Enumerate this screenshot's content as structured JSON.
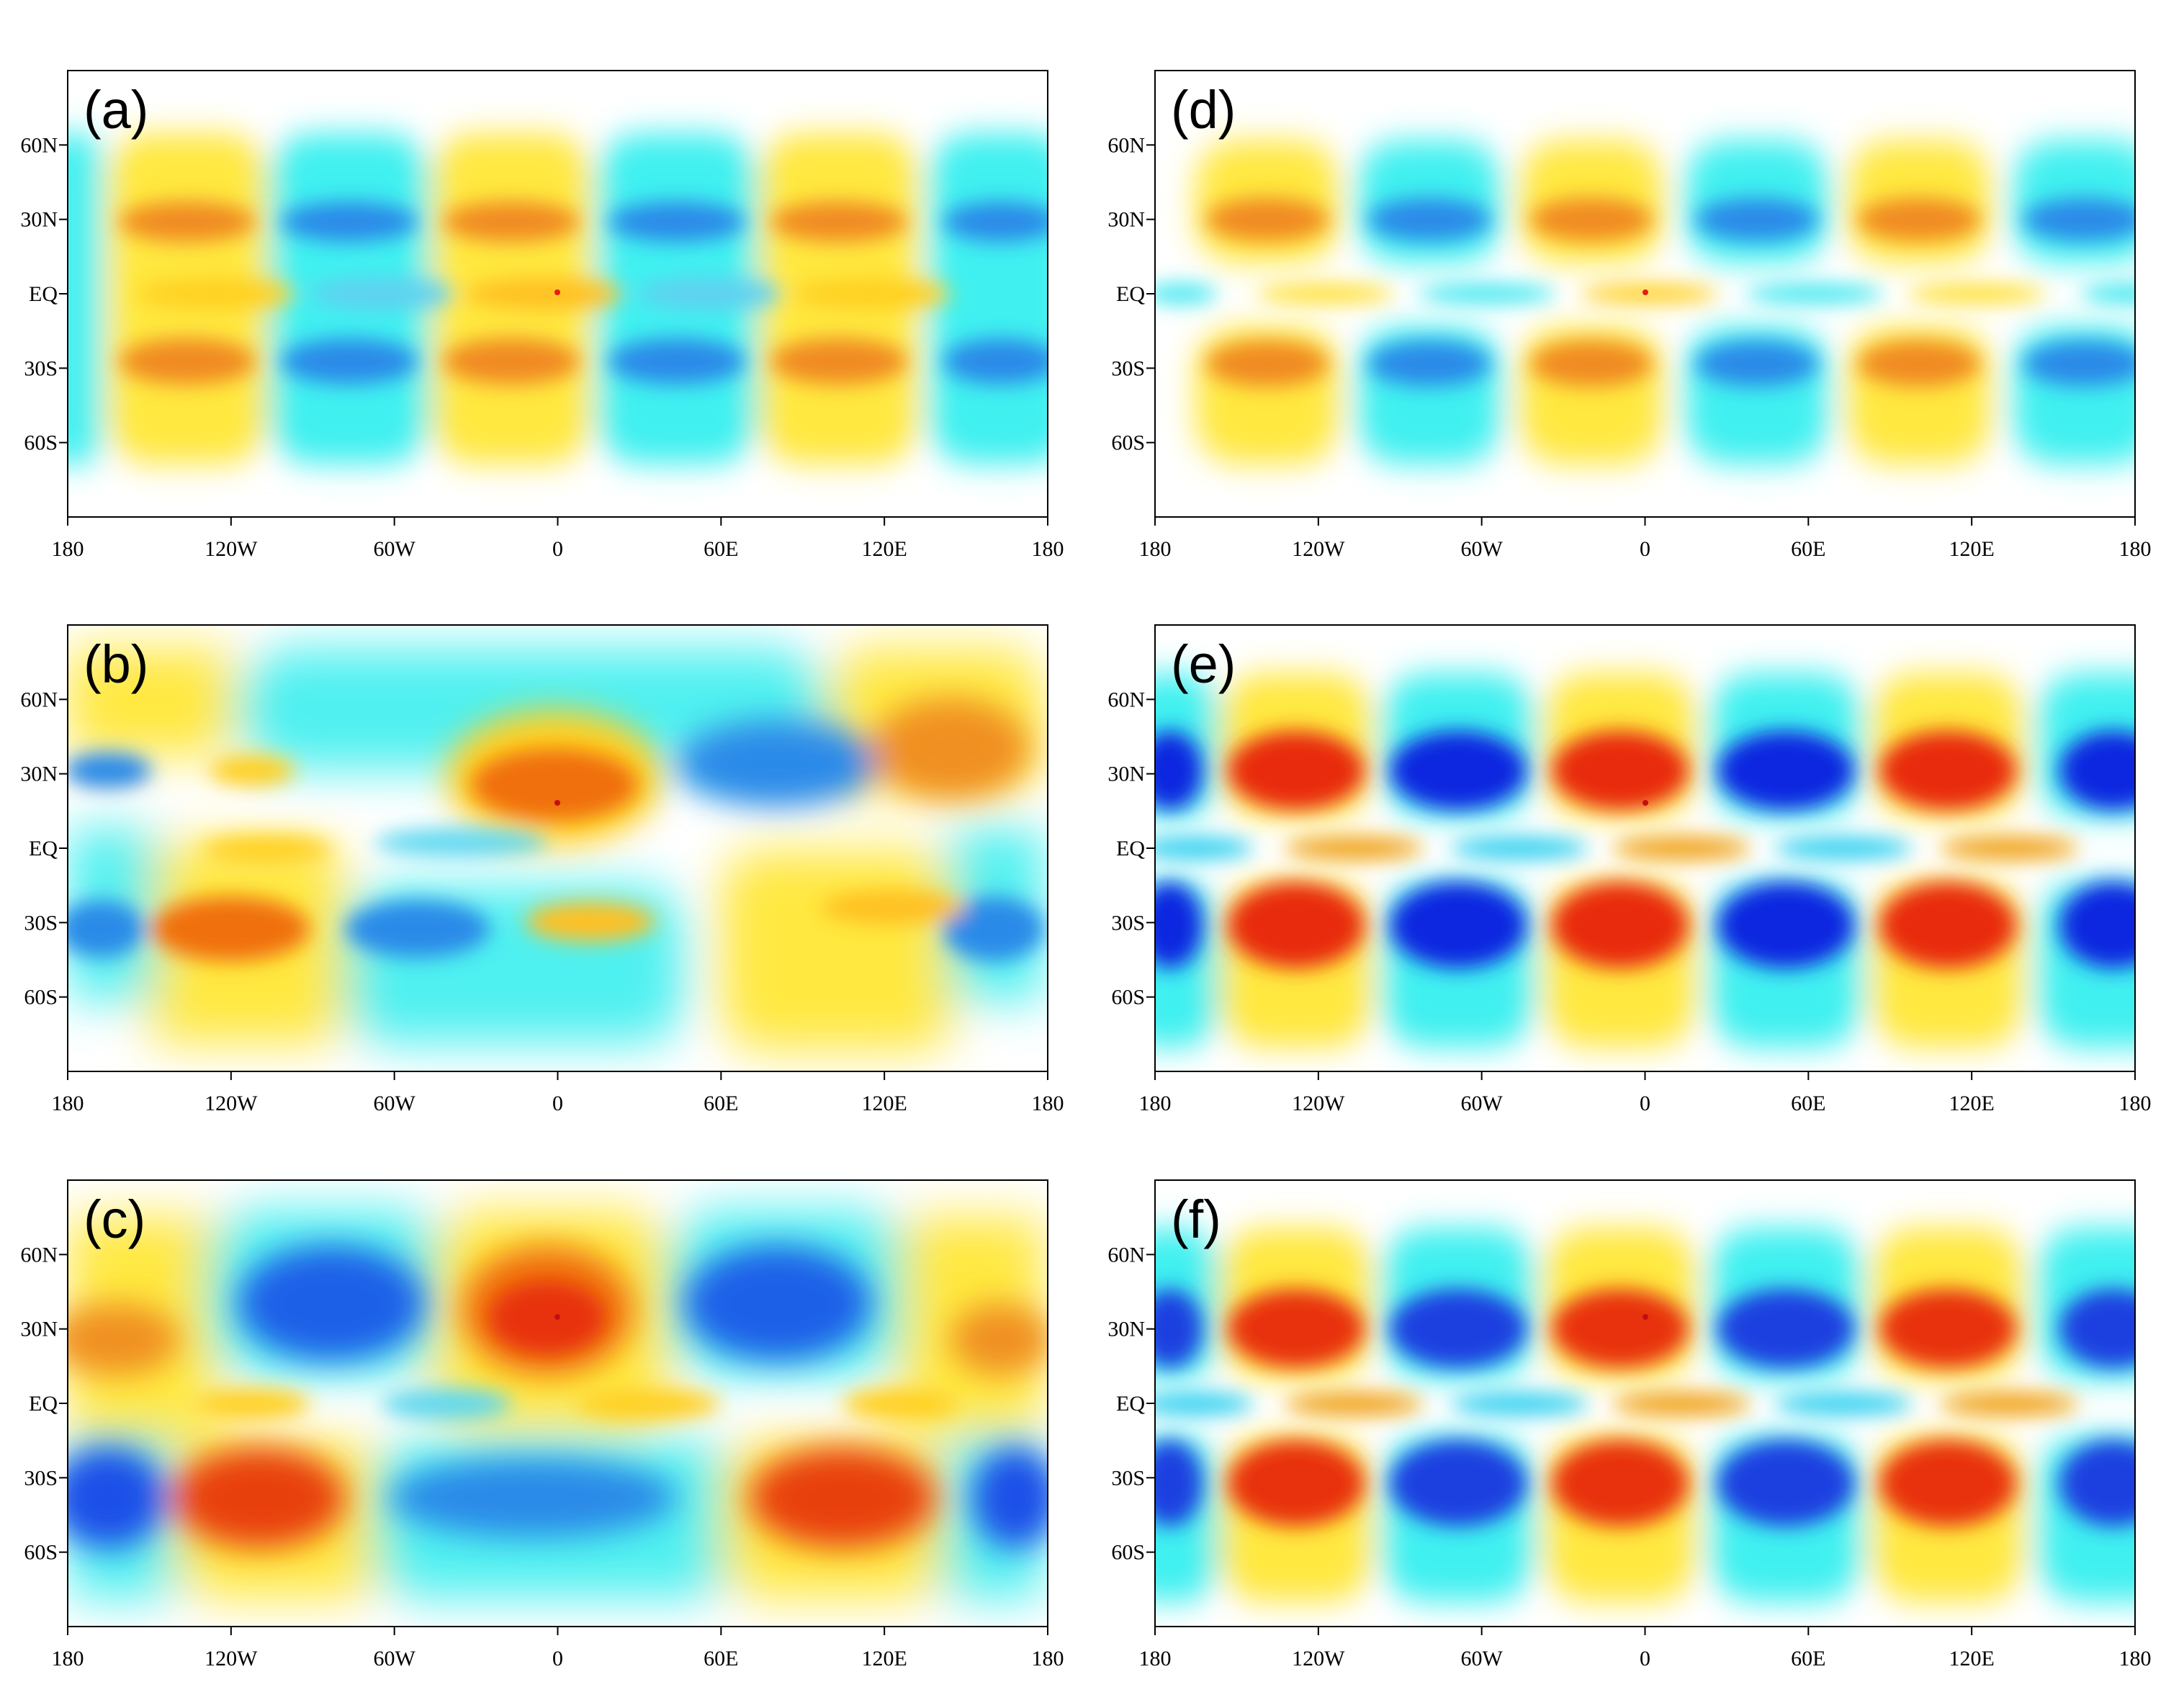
{
  "figure": {
    "panels": [
      {
        "id": "a",
        "label": "(a)"
      },
      {
        "id": "b",
        "label": "(b)"
      },
      {
        "id": "c",
        "label": "(c)"
      },
      {
        "id": "d",
        "label": "(d)"
      },
      {
        "id": "e",
        "label": "(e)"
      },
      {
        "id": "f",
        "label": "(f)"
      }
    ],
    "x_ticks": [
      {
        "lon": -180,
        "label": "180"
      },
      {
        "lon": -120,
        "label": "120W"
      },
      {
        "lon": -60,
        "label": "60W"
      },
      {
        "lon": 0,
        "label": "0"
      },
      {
        "lon": 60,
        "label": "60E"
      },
      {
        "lon": 120,
        "label": "120E"
      },
      {
        "lon": 180,
        "label": "180"
      }
    ],
    "y_ticks": [
      {
        "lat": 60,
        "label": "60N"
      },
      {
        "lat": 30,
        "label": "30N"
      },
      {
        "lat": 0,
        "label": "EQ"
      },
      {
        "lat": -30,
        "label": "30S"
      },
      {
        "lat": -60,
        "label": "60S"
      }
    ],
    "lon_range": [
      -180,
      180
    ],
    "lat_range": [
      -90,
      90
    ],
    "colors": {
      "positive_strong": "#e0200a",
      "positive_mid": "#f07a10",
      "positive_light": "#ffe020",
      "negative_light": "#30f0f0",
      "negative_mid": "#2090e8",
      "negative_strong": "#1028e0",
      "background": "#ffffff",
      "axis": "#000000"
    }
  }
}
